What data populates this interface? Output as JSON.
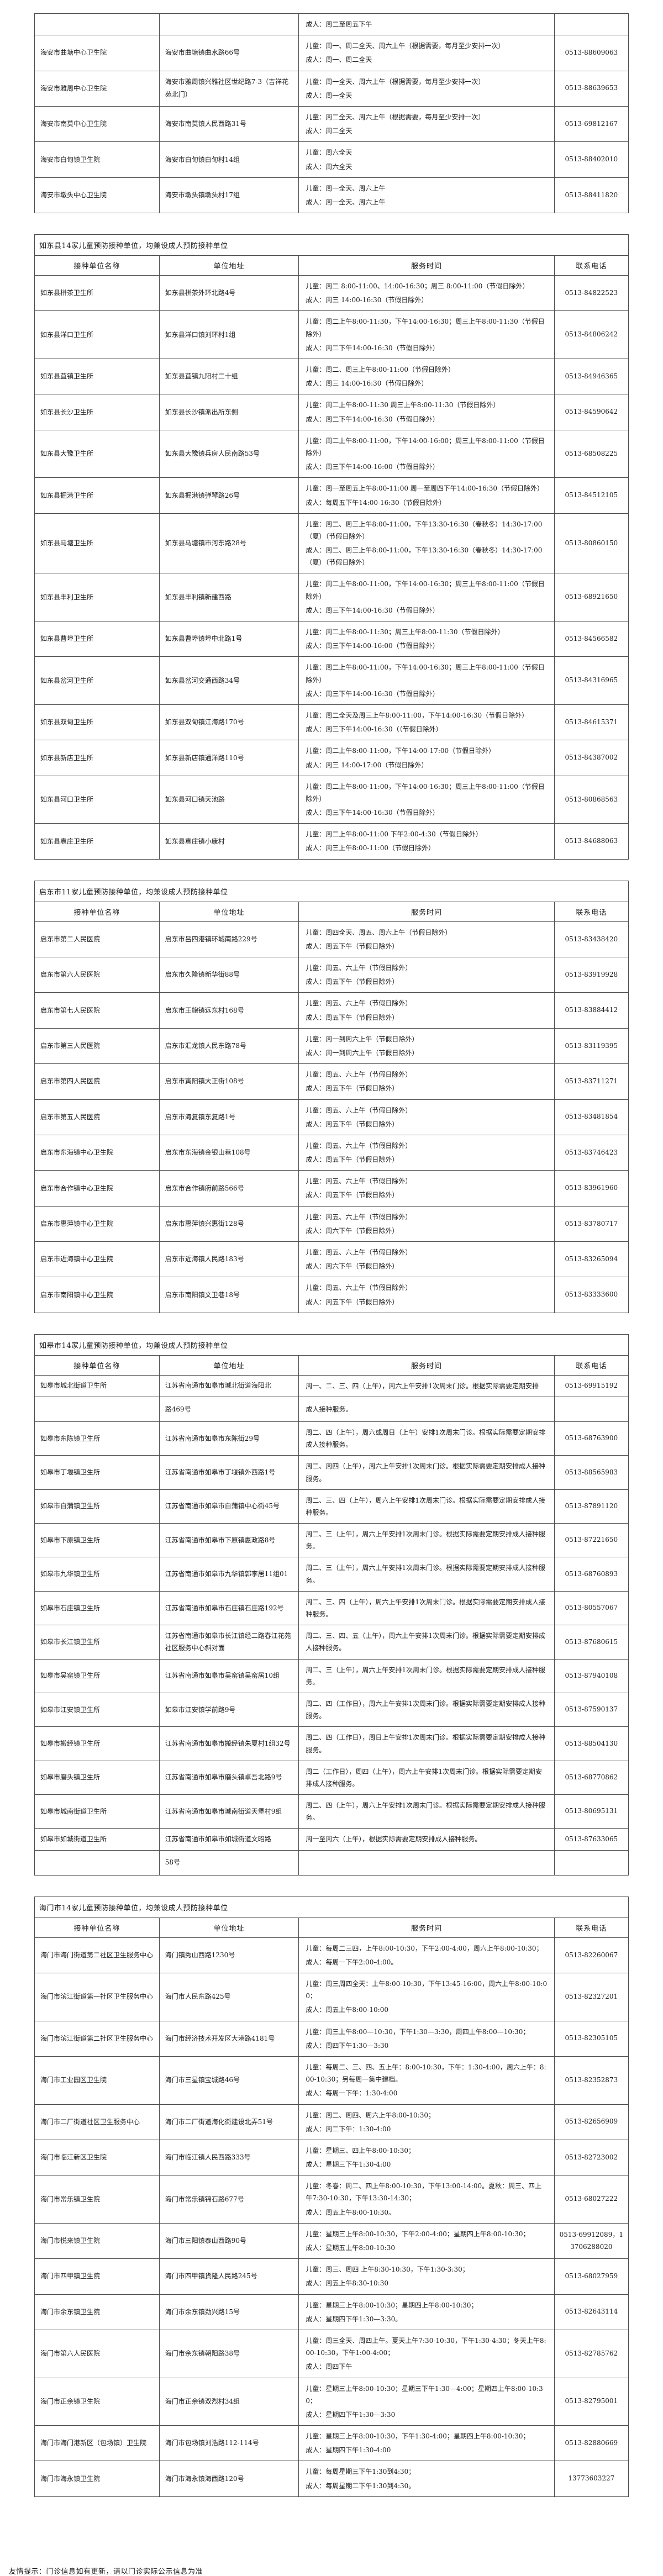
{
  "page": {
    "footer_note": "友情提示：门诊信息如有更新，请以门诊实际公示信息为准"
  },
  "columns": [
    "接种单位名称",
    "单位地址",
    "服务时间",
    "联系电话"
  ],
  "sections": [
    {
      "id": "haian-continued",
      "title": "",
      "show_header": false,
      "rows": [
        {
          "partial": true,
          "name": "",
          "address": "",
          "service": [
            "成人：周二至周五下午"
          ],
          "phone": ""
        },
        {
          "name": "海安市曲塘中心卫生院",
          "address": "海安市曲塘镇曲水路66号",
          "service": [
            "儿童：周一、周二全天、周六上午（根据需要，每月至少安排一次）",
            "成人：周一、周二全天"
          ],
          "phone": "0513-88609063"
        },
        {
          "name": "海安市雅周中心卫生院",
          "address": "海安市雅周镇兴雅社区世纪路7-3（吉祥花苑北门）",
          "service": [
            "儿童：周一全天、周六上午（根据需要，每月至少安排一次）",
            "成人：周一全天"
          ],
          "phone": "0513-88639653"
        },
        {
          "name": "海安市南莫中心卫生院",
          "address": "海安市南莫镇人民西路31号",
          "service": [
            "儿童：周二全天、周六上午（根据需要，每月至少安排一次）",
            "成人：周二全天"
          ],
          "phone": "0513-69812167"
        },
        {
          "name": "海安市白甸镇卫生院",
          "address": "海安市白甸镇白甸村14组",
          "service": [
            "儿童：周六全天",
            "成人：周六全天"
          ],
          "phone": "0513-88402010"
        },
        {
          "name": "海安市墩头中心卫生院",
          "address": "海安市墩头镇墩头村17组",
          "service": [
            "儿童：周一全天、周六上午",
            "成人：周一全天、周六上午"
          ],
          "phone": "0513-88411820"
        }
      ]
    },
    {
      "id": "rudong",
      "title": "如东县14家儿童预防接种单位，均兼设成人预防接种单位",
      "show_header": true,
      "rows": [
        {
          "name": "如东县栟茶卫生所",
          "address": "如东县栟茶外环北路4号",
          "service": [
            "儿童：周二 8:00-11:00、14:00-16:30；周三 8:00-11:00（节假日除外）",
            "成人：周三 14:00-16:30（节假日除外）"
          ],
          "phone": "0513-84822523"
        },
        {
          "name": "如东县洋口卫生所",
          "address": "如东县洋口镇刘环村1组",
          "service": [
            "儿童：周二上午8:00-11:30，下午14:00-16:30；周三上午8:00-11:30（节假日除外）",
            "成人：周二下午14:00-16:30（节假日除外）"
          ],
          "phone": "0513-84806242"
        },
        {
          "name": "如东县苴镇卫生所",
          "address": "如东县苴镇九阳村二十组",
          "service": [
            "儿童：周二、周三上午8:00-11:00（节假日除外）",
            "成人：周三 14:00-16:30（节假日除外）"
          ],
          "phone": "0513-84946365"
        },
        {
          "name": "如东县长沙卫生所",
          "address": "如东县长沙镇派出所东侧",
          "service": [
            "儿童：周二上午8:00-11:30 周三上午8:00-11:30（节假日除外）",
            "成人：周二下午14:00-16:30（节假日除外）"
          ],
          "phone": "0513-84590642"
        },
        {
          "name": "如东县大豫卫生所",
          "address": "如东县大豫镇兵房人民南路53号",
          "service": [
            "儿童：周二上午8:00-11:00，下午14:00-16:00；周三上午8:00-11:00（节假日除外）",
            "成人：周三下午14:00-16:00（节假日除外）"
          ],
          "phone": "0513-68508225"
        },
        {
          "name": "如东县掘港卫生所",
          "address": "如东县掘港镇弹琴路26号",
          "service": [
            "儿童：周一至周五上午8:00-11:00 周一至周四下午14:00-16:30（节假日除外）",
            "成人：每周五下午14:00-16:30（节假日除外）"
          ],
          "phone": "0513-84512105"
        },
        {
          "name": "如东县马塘卫生所",
          "address": "如东县马塘镇市河东路28号",
          "service": [
            "儿童：周二、周三上午8:00-11:00，下午13:30-16:30（春秋冬）14:30-17:00（夏）（节假日除外）",
            "成人：周二、周三上午8:00-11:00，下午13:30-16:30（春秋冬）14:30-17:00（夏）（节假日除外）"
          ],
          "phone": "0513-80860150"
        },
        {
          "name": "如东县丰利卫生所",
          "address": "如东县丰利镇新建西路",
          "service": [
            "儿童：周二上午8:00-11:00，下午14:00-16:30；周三上午8:00-11:00（节假日除外）",
            "成人：周三下午14:00-16:30（节假日除外）"
          ],
          "phone": "0513-68921650"
        },
        {
          "name": "如东县曹埠卫生所",
          "address": "如东县曹埠镇埠中北路1号",
          "service": [
            "儿童：周二上午8:00-11:30；周三上午8:00-11:30（节假日除外）",
            "成人：周三下午14:00-16:00（节假日除外）"
          ],
          "phone": "0513-84566582"
        },
        {
          "name": "如东县岔河卫生所",
          "address": "如东县岔河交通西路34号",
          "service": [
            "儿童：周二上午8:00-11:00，下午14:00-16:30；周三上午8:00-11:00（节假日除外）",
            "成人：周三下午14:00-16:30（节假日除外）"
          ],
          "phone": "0513-84316965"
        },
        {
          "name": "如东县双甸卫生所",
          "address": "如东县双甸镇江海路170号",
          "service": [
            "儿童：周二全天及周三上午8:00-11:00，下午14:00-16:30（节假日除外）",
            "成人：周三下午14:00-16:30（（节假日除外）"
          ],
          "phone": "0513-84615371"
        },
        {
          "name": "如东县新店卫生所",
          "address": "如东县新店镇通洋路110号",
          "service": [
            "儿童：周二上午8:00-11:00，下午14:00-17:00（节假日除外）",
            "成人：周三 14:00-17:00（节假日除外）"
          ],
          "phone": "0513-84387002"
        },
        {
          "name": "如东县河口卫生所",
          "address": "如东县河口镇天池路",
          "service": [
            "儿童：周二上午8:00-11:00，下午14:00-16:30；周三上午8:00-11:00（节假日除外）",
            "成人：周三下午14:00-16:30（节假日除外）"
          ],
          "phone": "0513-80868563"
        },
        {
          "name": "如东县袁庄卫生所",
          "address": "如东县袁庄镇小康村",
          "service": [
            "儿童：周二上午8:00-11:00 下午2:00-4:30（节假日除外）",
            "成人：周三上午8:00-11:00（节假日除外）"
          ],
          "phone": "0513-84688063"
        }
      ]
    },
    {
      "id": "qidong",
      "title": "启东市11家儿童预防接种单位，均兼设成人预防接种单位",
      "show_header": true,
      "rows": [
        {
          "name": "启东市第二人民医院",
          "address": "启东市吕四港镇环城南路229号",
          "service": [
            "儿童：周四全天、周五、周六上午（节假日除外）",
            "成人：周五下午（节假日除外）"
          ],
          "phone": "0513-83438420"
        },
        {
          "name": "启东市第六人民医院",
          "address": "启东市久隆镇新华街88号",
          "service": [
            "儿童：周五、六上午（节假日除外）",
            "成人：周五下午（节假日除外）"
          ],
          "phone": "0513-83919928"
        },
        {
          "name": "启东市第七人民医院",
          "address": "启东市王鲍镇远东村168号",
          "service": [
            "儿童：周五、六上午（节假日除外）",
            "成人：周五下午（节假日除外）"
          ],
          "phone": "0513-83884412"
        },
        {
          "name": "启东市第三人民医院",
          "address": "启东市汇龙镇人民东路78号",
          "service": [
            "儿童：周一到周六上午（节假日除外）",
            "成人：周一到周六上午（节假日除外）"
          ],
          "phone": "0513-83119395"
        },
        {
          "name": "启东市第四人民医院",
          "address": "启东市寅阳镇大正街108号",
          "service": [
            "儿童：周五、六上午（节假日除外）",
            "成人：周五下午（节假日除外）"
          ],
          "phone": "0513-83711271"
        },
        {
          "name": "启东市第五人民医院",
          "address": "启东市海复镇东复路1号",
          "service": [
            "儿童：周五、六上午（节假日除外）",
            "成人：周五下午（节假日除外）"
          ],
          "phone": "0513-83481854"
        },
        {
          "name": "启东市东海镇中心卫生院",
          "address": "启东市东海镇金银山巷108号",
          "service": [
            "儿童：周五、六上午（节假日除外）",
            "成人：周五下午（节假日除外）"
          ],
          "phone": "0513-83746423"
        },
        {
          "name": "启东市合作镇中心卫生院",
          "address": "启东市合作镇府前路566号",
          "service": [
            "儿童：周五、六上午（节假日除外）",
            "成人：周五下午（节假日除外）"
          ],
          "phone": "0513-83961960"
        },
        {
          "name": "启东市惠萍镇中心卫生院",
          "address": "启东市惠萍镇兴惠街128号",
          "service": [
            "儿童：周五、六上午（节假日除外）",
            "成人：周六下午（节假日除外）"
          ],
          "phone": "0513-83780717"
        },
        {
          "name": "启东市近海镇中心卫生院",
          "address": "启东市近海镇人民路183号",
          "service": [
            "儿童：周五、六上午（节假日除外）",
            "成人：周六下午（节假日除外）"
          ],
          "phone": "0513-83265094"
        },
        {
          "name": "启东市南阳镇中心卫生院",
          "address": "启东市南阳镇文卫巷18号",
          "service": [
            "儿童：周五、六上午（节假日除外）",
            "成人：周五下午（节假日除外）"
          ],
          "phone": "0513-83333600"
        }
      ]
    },
    {
      "id": "rugao",
      "title": "如皋市14家儿童预防接种单位，均兼设成人预防接种单位",
      "show_header": true,
      "rows": [
        {
          "name": "如皋市城北街道卫生所",
          "address": "江苏省南通市如皋市城北街道海阳北",
          "service": [
            "周一、二、三、四（上午），周六上午安排1次周末门诊。根据实际需要定期安排"
          ],
          "phone": "0513-69915192"
        },
        {
          "stub": true,
          "name": "",
          "address": "路469号",
          "service": [
            "成人接种服务。"
          ],
          "phone": ""
        },
        {
          "name": "如皋市东陈镇卫生所",
          "address": "江苏省南通市如皋市东陈街29号",
          "service": [
            "周二、四（上午），周六或周日（上午）安排1次周末门诊。根据实际需要定期安排成人接种服务。"
          ],
          "phone": "0513-68763900"
        },
        {
          "name": "如皋市丁堰镇卫生所",
          "address": "江苏省南通市如皋市丁堰镇外西路1号",
          "service": [
            "周二、周四（上午），周六上午安排1次周末门诊。根据实际需要定期安排成人接种服务。"
          ],
          "phone": "0513-88565983"
        },
        {
          "name": "如皋市白蒲镇卫生所",
          "address": "江苏省南通市如皋市白蒲镇中心街45号",
          "service": [
            "周二、三、四（上午），周六上午安排1次周末门诊。根据实际需要定期安排成人接种服务。"
          ],
          "phone": "0513-87891120"
        },
        {
          "name": "如皋市下原镇卫生所",
          "address": "江苏省南通市如皋市下原镇惠政路8号",
          "service": [
            "周二、三（上午），周六上午安排1次周末门诊。根据实际需要定期安排成人接种服务。"
          ],
          "phone": "0513-87221650"
        },
        {
          "name": "如皋市九华镇卫生所",
          "address": "江苏省南通市如皋市九华镇郭李居11组01",
          "service": [
            "周二、三（上午），周六上午安排1次周末门诊。根据实际需要定期安排成人接种服务。"
          ],
          "phone": "0513-68760893"
        },
        {
          "name": "如皋市石庄镇卫生所",
          "address": "江苏省南通市如皋市石庄镇石庄路192号",
          "service": [
            "周二、三、四（上午），周六上午安排1次周末门诊。根据实际需要定期安排成人接种服务。"
          ],
          "phone": "0513-80557067"
        },
        {
          "name": "如皋市长江镇卫生所",
          "address": "江苏省南通市如皋市长江镇经二路春江花苑社区服务中心斜对面",
          "service": [
            "周二、三、四、五（上午），周六上午安排1次周末门诊。根据实际需要定期安排成人接种服务。"
          ],
          "phone": "0513-87680615"
        },
        {
          "name": "如皋市吴窑镇卫生所",
          "address": "江苏省南通市如皋市吴窑镇吴窑居10组",
          "service": [
            "周二、三（上午），周六上午安排1次周末门诊。根据实际需要定期安排成人接种服务。"
          ],
          "phone": "0513-87940108"
        },
        {
          "name": "如皋市江安镇卫生所",
          "address": "如皋市江安镇学前路9号",
          "service": [
            "周二、四（工作日），周六上午安排1次周末门诊。根据实际需要定期安排成人接种服务。"
          ],
          "phone": "0513-87590137"
        },
        {
          "name": "如皋市搬经镇卫生所",
          "address": "江苏省南通市如皋市搬经镇朱夏村1组32号",
          "service": [
            "周二、四（工作日），周日上午安排1次周末门诊。根据实际需要定期安排成人接种服务。"
          ],
          "phone": "0513-88504130"
        },
        {
          "name": "如皋市磨头镇卫生所",
          "address": "江苏省南通市如皋市磨头镇卓吾北路9号",
          "service": [
            "周二（工作日），周四（上午），周六上午安排1次周末门诊。根据实际需要定期安排成人接种服务。"
          ],
          "phone": "0513-68770862"
        },
        {
          "name": "如皋市城南街道卫生所",
          "address": "江苏省南通市如皋市城南街道天堡村9组",
          "service": [
            "周二、四（上午），周六上午安排1次周末门诊。根据实际需要定期安排成人接种服务。"
          ],
          "phone": "0513-80695131"
        },
        {
          "name": "如皋市如城街道卫生所",
          "address": "江苏省南通市如皋市如城街道文昭路",
          "service": [
            "周一至周六（上午），根据实际需要定期安排成人接种服务。"
          ],
          "phone": "0513-87633065"
        },
        {
          "stub": true,
          "name": "",
          "address": "58号",
          "service": [
            ""
          ],
          "phone": ""
        }
      ]
    },
    {
      "id": "haimen",
      "title": "海门市14家儿童预防接种单位，均兼设成人预防接种单位",
      "show_header": true,
      "rows": [
        {
          "name": "海门市海门街道第二社区卫生服务中心",
          "address": "海门镇秀山西路1230号",
          "service": [
            "儿童：每周二三四，上午8:00-10:30，下午2:00-4:00，周六上午8:00-10:30；",
            "成人：每周一下午2:00-4:00。"
          ],
          "phone": "0513-82260067"
        },
        {
          "name": "海门市滨江街道第一社区卫生服务中心",
          "address": "海门市人民东路425号",
          "service": [
            "儿童：周三周四全天：上午8:00-10:30，下午13:45-16:00，周六上午8:00-10:00；",
            "成人：周五上午8:00-10:00"
          ],
          "phone": "0513-82327201"
        },
        {
          "name": "海门市滨江街道第二社区卫生服务中心",
          "address": "海门市经济技术开发区大港路4181号",
          "service": [
            "儿童：周三上午8:00—10:30，下午1:30—3:30，周四上午8:00—10:30；",
            "成人：周四下午1:30—3:30"
          ],
          "phone": "0513-82305105"
        },
        {
          "name": "海门市工业园区卫生院",
          "address": "海门市三星镇宝城路46号",
          "service": [
            "儿童：每周二、三、四、五上午：8:00-10:30，下午：1:30-4:00，周六上午：8:00-10:30；另每周一集中建档。",
            "成人：每周一下午：1:30-4:00"
          ],
          "phone": "0513-82352873"
        },
        {
          "name": "海门市二厂街道社区卫生服务中心",
          "address": "海门市二厂街道海化街建设北弄51号",
          "service": [
            "儿童：周二、周四、周六上午8:00-10:30；",
            "成人：周二下午：1:30-4:00"
          ],
          "phone": "0513-82656909"
        },
        {
          "name": "海门市临江新区卫生院",
          "address": "海门市临江镇人民西路333号",
          "service": [
            "儿童：星期三、四上午8:00-10:30；",
            "成人：星期三下午1:30-4:00"
          ],
          "phone": "0513-82723002"
        },
        {
          "name": "海门市常乐镇卫生院",
          "address": "海门市常乐镇锦石路677号",
          "service": [
            "儿童：冬春：周二、四上午8:00-10:30，下午13:00-14:00。夏秋：周三、四上午7:30-10:30，下午13:30-14:30；",
            "成人：周五上午8:00-10:30。"
          ],
          "phone": "0513-68027222"
        },
        {
          "name": "海门市悦来镇卫生院",
          "address": "海门市三阳镇泰山西路90号",
          "service": [
            "儿童：星期三上午8:00-10:30，下午2:00-4:00；星期四上午8:00-10:30；",
            "成人：星期五上午8:00-10:30"
          ],
          "phone": "0513-69912089，13706288020"
        },
        {
          "name": "海门市四甲镇卫生院",
          "address": "海门市四甲镇货隆人民路245号",
          "service": [
            "儿童：周三、周四 上午8:30-10:30，下午1:30-3:30；",
            "成人：周五上午8:30-10:30"
          ],
          "phone": "0513-68027959"
        },
        {
          "name": "海门市余东镇卫生院",
          "address": "海门市余东镇劲兴路15号",
          "service": [
            "儿童：星期三上午8:00-10:30；星期四上午8:00-10:30；",
            "成人：星期四下午1:30—3:30。"
          ],
          "phone": "0513-82643114"
        },
        {
          "name": "海门市第六人民医院",
          "address": "海门市余东镇朝阳路38号",
          "service": [
            "儿童：周三全天、周四上午。夏天上午7:30-10:30，下午1:30-4:30；冬天上午8:00-10:30，下午1:00-4:00；",
            "成人：周四下午"
          ],
          "phone": "0513-82785762"
        },
        {
          "name": "海门市正余镇卫生院",
          "address": "海门市正余镇双烈村34组",
          "service": [
            "儿童：星期三上午8:00-10:30；星期三下午1:30—4:00；星期四上午8:00-10:30；",
            "成人：星期四下午1:30—3:30"
          ],
          "phone": "0513-82795001"
        },
        {
          "name": "海门市海门港新区（包场镇）卫生院",
          "address": "海门市包场镇刘浩路112-114号",
          "service": [
            "儿童：星期三上午8:00-10:30，下午1:30-4:00；星期四上午8:00-10:30；",
            "成人：星期四下午1:30-4:00"
          ],
          "phone": "0513-82880669"
        },
        {
          "name": "海门市海永镇卫生院",
          "address": "海门市海永镇海西路120号",
          "service": [
            "儿童：每周星期三下午1:30到4:30；",
            "成人：每周星期二下午1:30到4:30。"
          ],
          "phone": "13773603227"
        }
      ]
    }
  ]
}
